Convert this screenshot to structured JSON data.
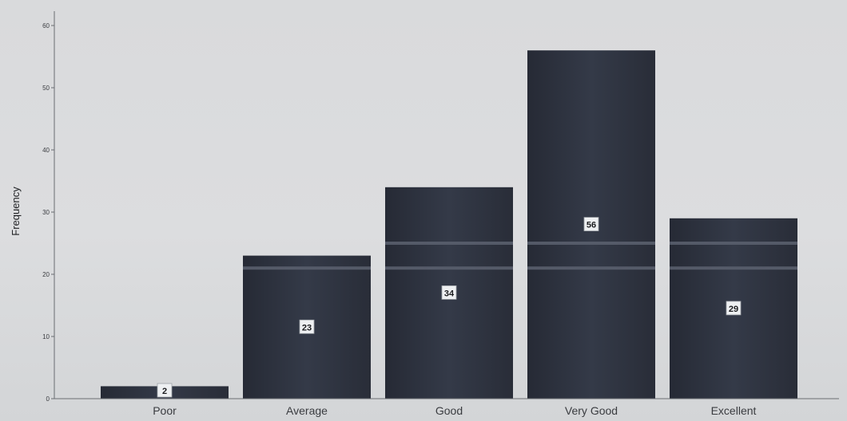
{
  "chart_data": {
    "type": "bar",
    "categories": [
      "Poor",
      "Average",
      "Good",
      "Very Good",
      "Excellent"
    ],
    "values": [
      2,
      23,
      34,
      56,
      29
    ],
    "data_labels": [
      "2",
      "23",
      "34",
      "56",
      "29"
    ],
    "title": "",
    "xlabel": "",
    "ylabel": "Frequency",
    "ylim": [
      0,
      60
    ],
    "yticks": [
      0,
      10,
      20,
      30,
      40,
      50,
      60
    ],
    "grid": false,
    "legend": "none"
  },
  "colors": {
    "bar": "#2e3340",
    "bar_band": "#5c6270",
    "axis": "#6a6d72",
    "background": "#d9dadc"
  }
}
